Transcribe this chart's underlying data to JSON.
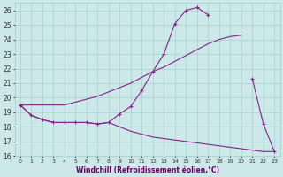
{
  "xlabel": "Windchill (Refroidissement éolien,°C)",
  "bg_color": "#cce8e8",
  "grid_color": "#99cccc",
  "line_color": "#882288",
  "xlim": [
    -0.5,
    23.5
  ],
  "ylim": [
    16,
    26.5
  ],
  "yticks": [
    16,
    17,
    18,
    19,
    20,
    21,
    22,
    23,
    24,
    25,
    26
  ],
  "xtick_labels": [
    "0",
    "1",
    "2",
    "3",
    "4",
    "5",
    "6",
    "7",
    "8",
    "9",
    "10",
    "11",
    "12",
    "13",
    "14",
    "15",
    "16",
    "17",
    "18",
    "19",
    "20",
    "21",
    "22",
    "23"
  ],
  "line_spiky_x": [
    0,
    1,
    2,
    3,
    4,
    5,
    6,
    7,
    8,
    9,
    10,
    11,
    12,
    13,
    14,
    15,
    16,
    17,
    18,
    19,
    20,
    21,
    22,
    23
  ],
  "line_spiky_y": [
    19.5,
    18.8,
    18.5,
    18.3,
    18.3,
    18.3,
    18.3,
    18.2,
    18.3,
    18.9,
    19.4,
    20.5,
    21.8,
    23.0,
    25.1,
    26.0,
    26.2,
    25.7,
    null,
    null,
    null,
    21.3,
    18.2,
    16.3
  ],
  "line_smooth_x": [
    0,
    1,
    2,
    3,
    4,
    5,
    6,
    7,
    8,
    9,
    10,
    11,
    12,
    13,
    14,
    15,
    16,
    17,
    18,
    19,
    20
  ],
  "line_smooth_y": [
    19.5,
    19.5,
    19.5,
    19.5,
    19.5,
    19.7,
    19.9,
    20.1,
    20.4,
    20.7,
    21.0,
    21.4,
    21.8,
    22.1,
    22.5,
    22.9,
    23.3,
    23.7,
    24.0,
    24.2,
    24.3
  ],
  "line_decline_x": [
    0,
    1,
    2,
    3,
    4,
    5,
    6,
    7,
    8,
    9,
    10,
    11,
    12,
    13,
    14,
    15,
    16,
    17,
    18,
    19,
    20,
    21,
    22,
    23
  ],
  "line_decline_y": [
    19.5,
    18.8,
    18.5,
    18.3,
    18.3,
    18.3,
    18.3,
    18.2,
    18.3,
    18.0,
    17.7,
    17.5,
    17.3,
    17.2,
    17.1,
    17.0,
    16.9,
    16.8,
    16.7,
    16.6,
    16.5,
    16.4,
    16.3,
    16.3
  ]
}
